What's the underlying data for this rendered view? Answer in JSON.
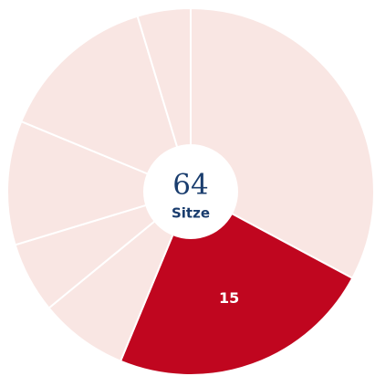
{
  "chart_data": {
    "type": "donut",
    "values": [
      21,
      15,
      5,
      4,
      7,
      9,
      3
    ],
    "colors": [
      "#f9e6e3",
      "#c0061f",
      "#f9e6e3",
      "#f9e6e3",
      "#f9e6e3",
      "#f9e6e3",
      "#f9e6e3"
    ],
    "highlight": 1,
    "total": 64,
    "total_label": "Sitze"
  }
}
